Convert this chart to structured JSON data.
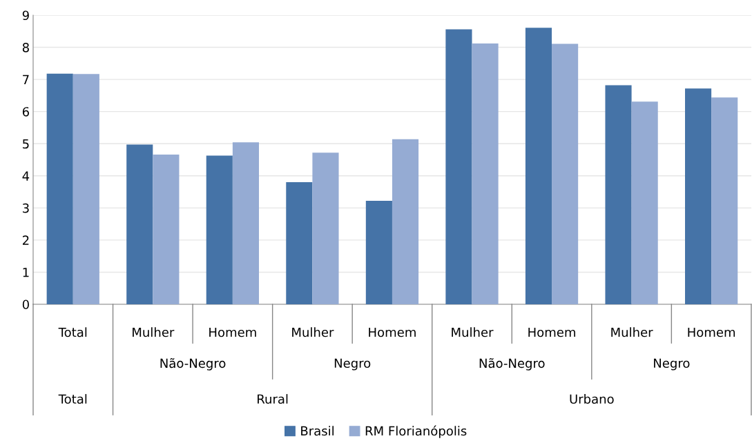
{
  "chart_data": {
    "type": "bar",
    "categories": [
      "Total",
      "Mulher",
      "Homem",
      "Mulher",
      "Homem",
      "Mulher",
      "Homem",
      "Mulher",
      "Homem"
    ],
    "series": [
      {
        "name": "Brasil",
        "color": "#4573a7",
        "values": [
          7.18,
          4.97,
          4.63,
          3.8,
          3.22,
          8.56,
          8.61,
          6.82,
          6.72
        ]
      },
      {
        "name": "RM Florianópolis",
        "color": "#95abd3",
        "values": [
          7.17,
          4.66,
          5.04,
          4.72,
          5.14,
          8.12,
          8.11,
          6.31,
          6.44
        ]
      }
    ],
    "annotations": [
      "Não-Negro",
      "Negro",
      "Não-Negro",
      "Negro",
      "Total",
      "Rural",
      "Urbano"
    ],
    "ylim": [
      0,
      9
    ],
    "yticks": [
      0,
      1,
      2,
      3,
      4,
      5,
      6,
      7,
      8,
      9
    ],
    "grid": "y",
    "legend": "bottom"
  }
}
